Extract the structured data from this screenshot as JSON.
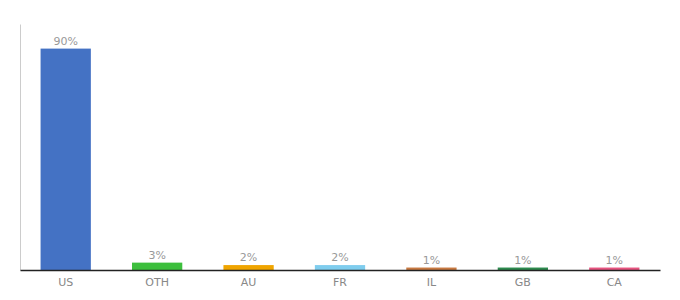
{
  "chart_data": {
    "type": "bar",
    "categories": [
      "US",
      "OTH",
      "AU",
      "FR",
      "IL",
      "GB",
      "CA"
    ],
    "values": [
      90,
      3,
      2,
      2,
      1,
      1,
      1
    ],
    "value_labels": [
      "90%",
      "3%",
      "2%",
      "2%",
      "1%",
      "1%",
      "1%"
    ],
    "colors": [
      "#4472c4",
      "#3dbf3d",
      "#f0a500",
      "#7fcdee",
      "#c87941",
      "#2d8a4e",
      "#e75480"
    ],
    "ylim": [
      0,
      100
    ],
    "data_labels": true,
    "tick_labels": "x",
    "grid": false
  }
}
